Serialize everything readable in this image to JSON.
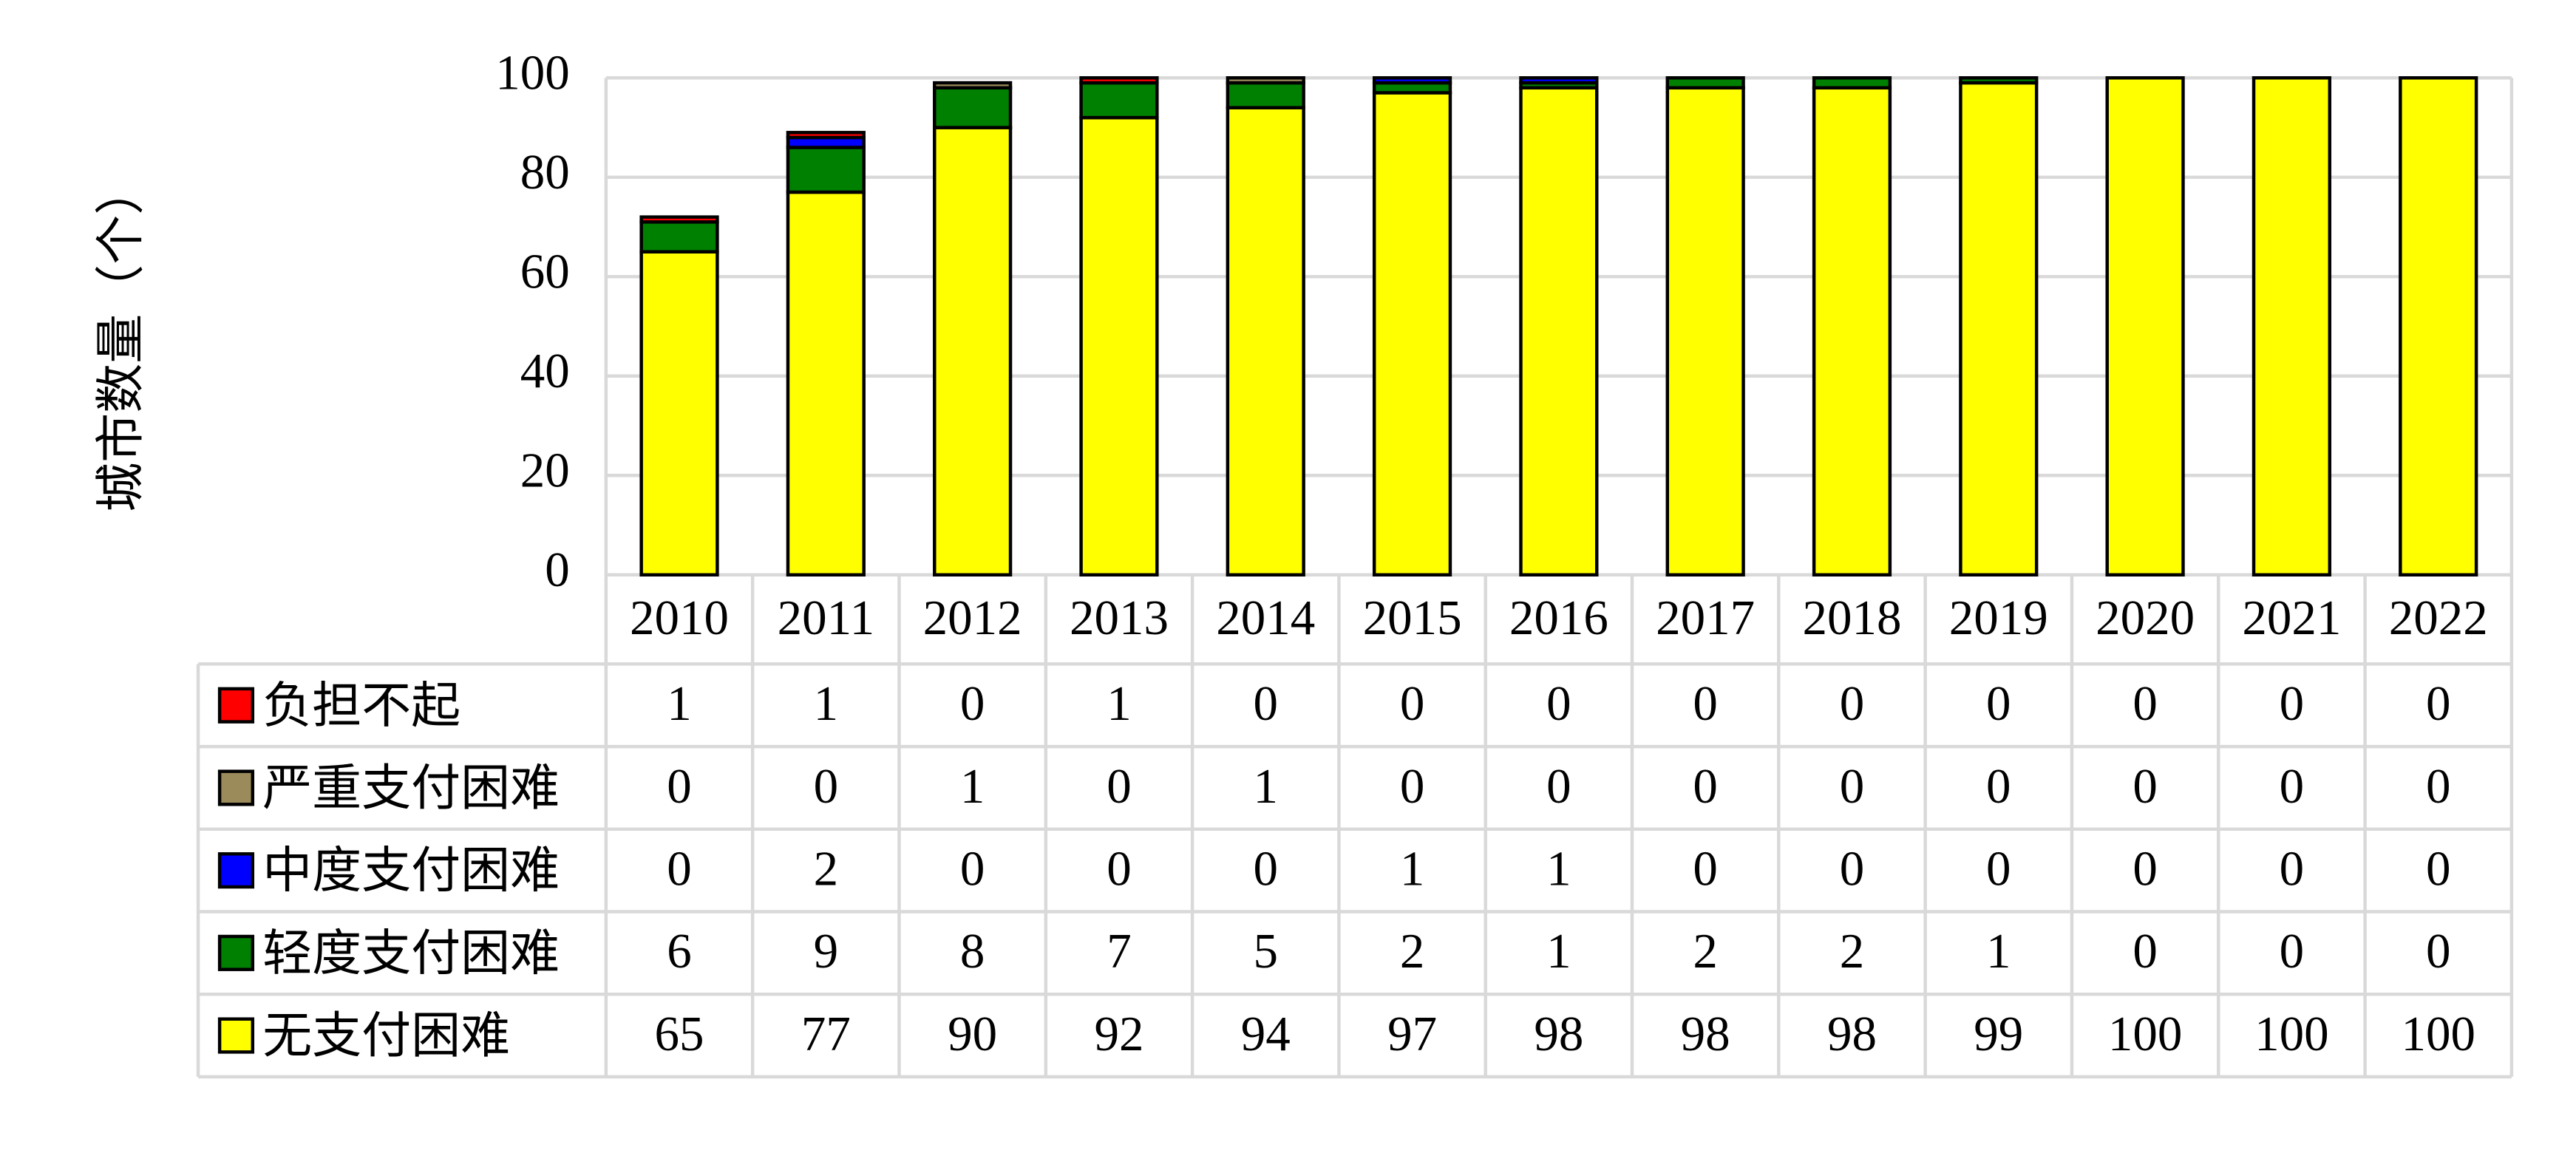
{
  "chart_data": {
    "type": "stacked-bar",
    "y_label": "城市数量（个）",
    "categories": [
      "2010",
      "2011",
      "2012",
      "2013",
      "2014",
      "2015",
      "2016",
      "2017",
      "2018",
      "2019",
      "2020",
      "2021",
      "2022"
    ],
    "series": [
      {
        "name": "负担不起",
        "color": "#ff0000",
        "values": [
          1,
          1,
          0,
          1,
          0,
          0,
          0,
          0,
          0,
          0,
          0,
          0,
          0
        ]
      },
      {
        "name": "严重支付困难",
        "color": "#9c8b5a",
        "values": [
          0,
          0,
          1,
          0,
          1,
          0,
          0,
          0,
          0,
          0,
          0,
          0,
          0
        ]
      },
      {
        "name": "中度支付困难",
        "color": "#0000ff",
        "values": [
          0,
          2,
          0,
          0,
          0,
          1,
          1,
          0,
          0,
          0,
          0,
          0,
          0
        ]
      },
      {
        "name": "轻度支付困难",
        "color": "#008000",
        "values": [
          6,
          9,
          8,
          7,
          5,
          2,
          1,
          2,
          2,
          1,
          0,
          0,
          0
        ]
      },
      {
        "name": "无支付困难",
        "color": "#ffff00",
        "values": [
          65,
          77,
          90,
          92,
          94,
          97,
          98,
          98,
          98,
          99,
          100,
          100,
          100
        ]
      }
    ],
    "ylim": [
      0,
      100
    ],
    "yticks": [
      0,
      20,
      40,
      60,
      80,
      100
    ],
    "grid": true
  }
}
